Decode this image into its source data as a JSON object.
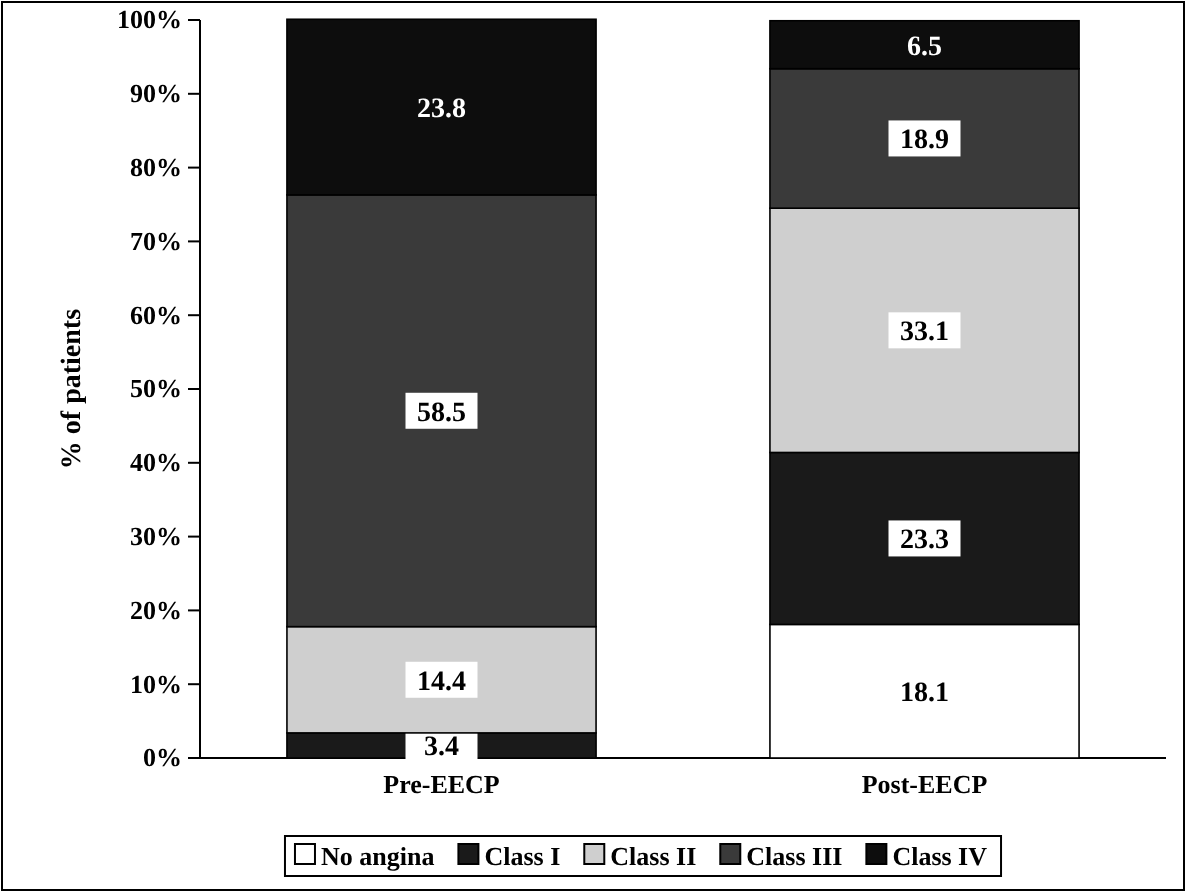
{
  "chart_data": {
    "type": "bar",
    "stacked": true,
    "ylabel": "% of patients",
    "categories": [
      "Pre-EECP",
      "Post-EECP"
    ],
    "series": [
      {
        "name": "No angina",
        "color": "#ffffff",
        "values": [
          0,
          18.1
        ],
        "value_labels": [
          null,
          "18.1"
        ]
      },
      {
        "name": "Class I",
        "color": "#1a1a1a",
        "values": [
          3.4,
          23.3
        ],
        "value_labels": [
          "3.4",
          "23.3"
        ]
      },
      {
        "name": "Class II",
        "color": "#cfcfcf",
        "values": [
          14.4,
          33.1
        ],
        "value_labels": [
          "14.4",
          "33.1"
        ]
      },
      {
        "name": "Class III",
        "color": "#3a3a3a",
        "values": [
          58.5,
          18.9
        ],
        "value_labels": [
          "58.5",
          "18.9"
        ]
      },
      {
        "name": "Class IV",
        "color": "#0d0d0d",
        "values": [
          23.8,
          6.5
        ],
        "value_labels": [
          "23.8",
          "6.5"
        ]
      }
    ],
    "ylim": [
      0,
      100
    ],
    "yticks": [
      {
        "value": 0,
        "label": "0%"
      },
      {
        "value": 10,
        "label": "10%"
      },
      {
        "value": 20,
        "label": "20%"
      },
      {
        "value": 30,
        "label": "30%"
      },
      {
        "value": 40,
        "label": "40%"
      },
      {
        "value": 50,
        "label": "50%"
      },
      {
        "value": 60,
        "label": "60%"
      },
      {
        "value": 70,
        "label": "70%"
      },
      {
        "value": 80,
        "label": "80%"
      },
      {
        "value": 90,
        "label": "90%"
      },
      {
        "value": 100,
        "label": "100%"
      }
    ],
    "legend": "bottom"
  }
}
